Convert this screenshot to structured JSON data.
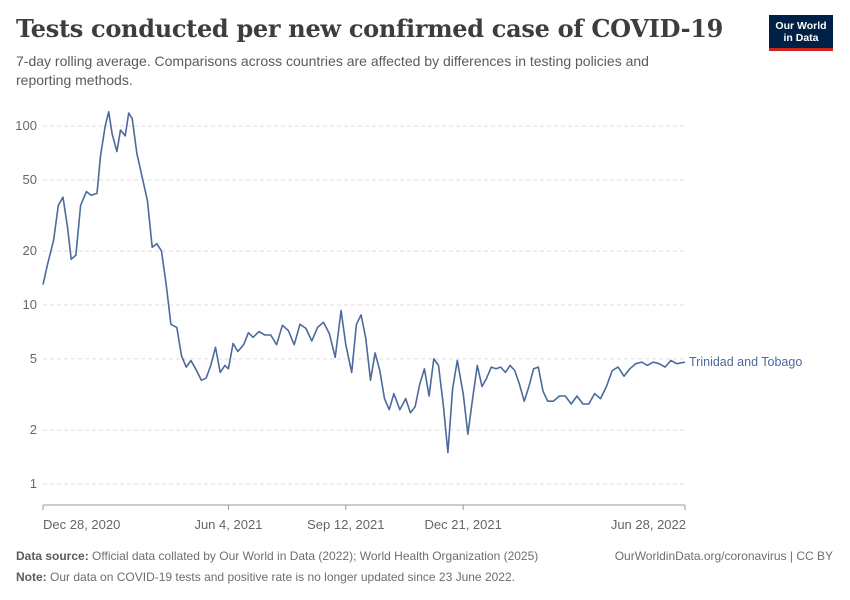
{
  "header": {
    "title": "Tests conducted per new confirmed case of COVID-19",
    "subtitle": "7-day rolling average. Comparisons across countries are affected by differences in testing policies and reporting methods.",
    "logo_line1": "Our World",
    "logo_line2": "in Data"
  },
  "footer": {
    "source_label": "Data source:",
    "source_text": "Official data collated by Our World in Data (2022); World Health Organization (2025)",
    "url": "OurWorldinData.org/coronavirus | CC BY",
    "note_label": "Note:",
    "note_text": "Our data on COVID-19 tests and positive rate is no longer updated since 23 June 2022."
  },
  "colors": {
    "line": "#4c6a9c",
    "grid": "#dddddd",
    "axis": "#666666",
    "tick_text": "#666666"
  },
  "chart_data": {
    "type": "line",
    "title": "Tests conducted per new confirmed case of COVID-19",
    "yscale": "log",
    "ylim": [
      0.8,
      150
    ],
    "y_ticks": [
      1,
      2,
      5,
      10,
      20,
      50,
      100
    ],
    "x_ticks": [
      "Dec 28, 2020",
      "Jun 4, 2021",
      "Sep 12, 2021",
      "Dec 21, 2021",
      "Jun 28, 2022"
    ],
    "xlim": [
      "2020-12-28",
      "2022-06-28"
    ],
    "grid": true,
    "series": [
      {
        "name": "Trinidad and Tobago",
        "x": [
          "2020-12-28",
          "2021-01-01",
          "2021-01-06",
          "2021-01-10",
          "2021-01-14",
          "2021-01-18",
          "2021-01-21",
          "2021-01-25",
          "2021-01-29",
          "2021-02-03",
          "2021-02-07",
          "2021-02-12",
          "2021-02-15",
          "2021-02-19",
          "2021-02-22",
          "2021-02-25",
          "2021-03-01",
          "2021-03-04",
          "2021-03-08",
          "2021-03-11",
          "2021-03-14",
          "2021-03-18",
          "2021-03-23",
          "2021-03-27",
          "2021-03-31",
          "2021-04-04",
          "2021-04-08",
          "2021-04-12",
          "2021-04-16",
          "2021-04-21",
          "2021-04-25",
          "2021-04-29",
          "2021-05-03",
          "2021-05-07",
          "2021-05-12",
          "2021-05-16",
          "2021-05-20",
          "2021-05-24",
          "2021-05-28",
          "2021-06-01",
          "2021-06-04",
          "2021-06-08",
          "2021-06-12",
          "2021-06-17",
          "2021-06-21",
          "2021-06-25",
          "2021-06-30",
          "2021-07-05",
          "2021-07-10",
          "2021-07-15",
          "2021-07-20",
          "2021-07-25",
          "2021-07-30",
          "2021-08-04",
          "2021-08-09",
          "2021-08-14",
          "2021-08-19",
          "2021-08-24",
          "2021-08-29",
          "2021-09-03",
          "2021-09-08",
          "2021-09-12",
          "2021-09-17",
          "2021-09-21",
          "2021-09-25",
          "2021-09-29",
          "2021-10-03",
          "2021-10-07",
          "2021-10-11",
          "2021-10-15",
          "2021-10-19",
          "2021-10-23",
          "2021-10-28",
          "2021-11-02",
          "2021-11-06",
          "2021-11-10",
          "2021-11-14",
          "2021-11-18",
          "2021-11-22",
          "2021-11-26",
          "2021-11-30",
          "2021-12-04",
          "2021-12-08",
          "2021-12-12",
          "2021-12-16",
          "2021-12-21",
          "2021-12-25",
          "2021-12-29",
          "2022-01-02",
          "2022-01-06",
          "2022-01-10",
          "2022-01-14",
          "2022-01-18",
          "2022-01-22",
          "2022-01-26",
          "2022-01-30",
          "2022-02-03",
          "2022-02-07",
          "2022-02-11",
          "2022-02-15",
          "2022-02-19",
          "2022-02-23",
          "2022-02-27",
          "2022-03-03",
          "2022-03-08",
          "2022-03-13",
          "2022-03-18",
          "2022-03-23",
          "2022-03-28",
          "2022-04-02",
          "2022-04-07",
          "2022-04-12",
          "2022-04-17",
          "2022-04-22",
          "2022-04-27",
          "2022-05-02",
          "2022-05-07",
          "2022-05-12",
          "2022-05-17",
          "2022-05-22",
          "2022-05-27",
          "2022-06-01",
          "2022-06-06",
          "2022-06-11",
          "2022-06-16",
          "2022-06-21",
          "2022-06-28"
        ],
        "y": [
          13,
          17,
          23,
          36,
          40,
          27,
          18,
          19,
          36,
          43,
          41,
          42,
          68,
          100,
          120,
          90,
          72,
          95,
          88,
          118,
          110,
          70,
          50,
          38,
          21,
          22,
          20,
          13,
          7.8,
          7.5,
          5.2,
          4.5,
          4.9,
          4.4,
          3.8,
          3.9,
          4.6,
          5.8,
          4.2,
          4.6,
          4.4,
          6.1,
          5.5,
          6.0,
          7.0,
          6.6,
          7.1,
          6.8,
          6.8,
          6.0,
          7.7,
          7.2,
          6.0,
          7.8,
          7.4,
          6.3,
          7.5,
          8.0,
          6.9,
          5.1,
          9.3,
          6.0,
          4.2,
          7.8,
          8.8,
          6.5,
          3.8,
          5.4,
          4.3,
          3.0,
          2.6,
          3.2,
          2.6,
          3.0,
          2.5,
          2.7,
          3.6,
          4.4,
          3.1,
          5.0,
          4.6,
          2.8,
          1.5,
          3.4,
          4.9,
          3.2,
          1.9,
          3.0,
          4.6,
          3.5,
          3.9,
          4.5,
          4.4,
          4.5,
          4.2,
          4.6,
          4.3,
          3.6,
          2.9,
          3.5,
          4.4,
          4.5,
          3.3,
          2.9,
          2.9,
          3.1,
          3.1,
          2.8,
          3.1,
          2.8,
          2.8,
          3.2,
          3.0,
          3.5,
          4.3,
          4.5,
          4.0,
          4.4,
          4.7,
          4.8,
          4.6,
          4.8,
          4.7,
          4.5,
          4.9,
          4.7,
          4.8
        ]
      }
    ]
  }
}
